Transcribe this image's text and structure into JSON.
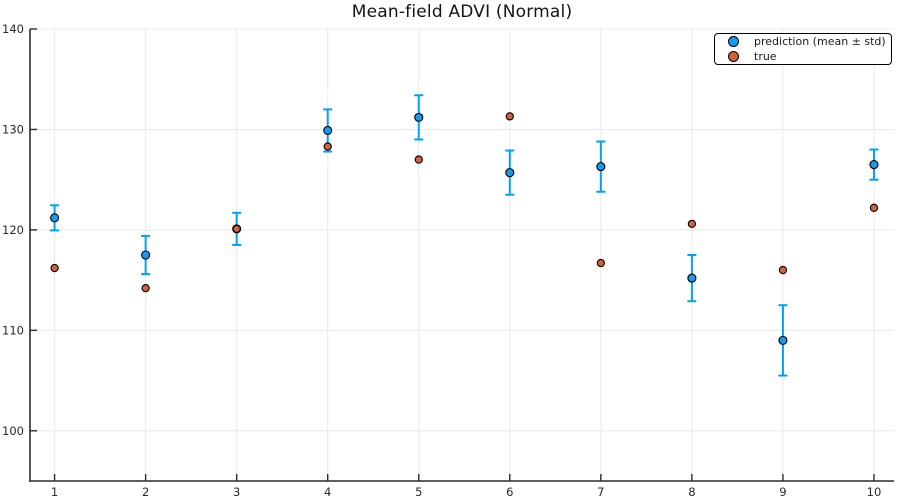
{
  "chart_data": {
    "type": "scatter",
    "title": "Mean-field ADVI (Normal)",
    "x": [
      1,
      2,
      3,
      4,
      5,
      6,
      7,
      8,
      9,
      10
    ],
    "series": [
      {
        "name": "prediction (mean ± std)",
        "color": "#149BF2",
        "errorbar_color": "#00A2F5",
        "means": [
          121.2,
          117.5,
          120.1,
          129.9,
          131.2,
          125.7,
          126.3,
          115.2,
          109.0,
          126.5
        ],
        "stds": [
          1.25,
          1.9,
          1.6,
          2.1,
          2.2,
          2.2,
          2.5,
          2.3,
          3.5,
          1.5
        ]
      },
      {
        "name": "true",
        "color": "#D2613C",
        "values": [
          116.2,
          114.2,
          120.1,
          128.3,
          127.0,
          131.3,
          116.7,
          120.6,
          116.0,
          122.2
        ]
      }
    ],
    "x_ticks": [
      1,
      2,
      3,
      4,
      5,
      6,
      7,
      8,
      9,
      10
    ],
    "y_ticks": [
      100,
      110,
      120,
      130,
      140
    ],
    "xlim": [
      0.73,
      10.22
    ],
    "ylim": [
      95,
      140
    ],
    "grid": true,
    "legend_position": "top-right",
    "style": {
      "grid_color": "#e9e9e9",
      "spine_color": "#2b2b2b",
      "tick_label_color": "#2a2a2a",
      "marker_stroke": "#000000"
    }
  }
}
